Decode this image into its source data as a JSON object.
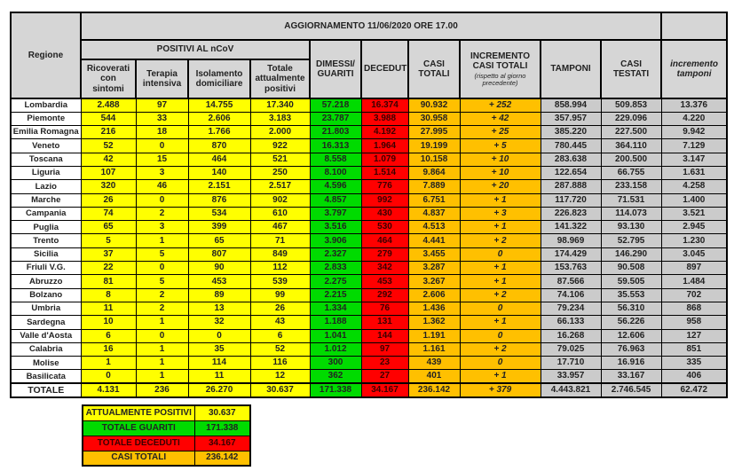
{
  "title": "AGGIORNAMENTO 11/06/2020 ORE 17.00",
  "columns": {
    "regione": "Regione",
    "positivi_group": "POSITIVI AL nCoV",
    "ricoverati": "Ricoverati con sintomi",
    "terapia": "Terapia intensiva",
    "isolamento": "Isolamento domiciliare",
    "totale_positivi": "Totale attualmente positivi",
    "dimessi": "DIMESSI/ GUARITI",
    "deceduti": "DECEDUTI",
    "casi_totali": "CASI TOTALI",
    "incremento_casi": "INCREMENTO CASI  TOTALI",
    "incremento_casi_note": "(rispetto al giorno precedente)",
    "tamponi": "TAMPONI",
    "casi_testati": "CASI TESTATI",
    "incremento_tamponi": "incremento tamponi"
  },
  "rows": [
    {
      "region": "Lombardia",
      "values": [
        "2.488",
        "97",
        "14.755",
        "17.340",
        "57.218",
        "16.374",
        "90.932",
        "+ 252",
        "858.994",
        "509.853",
        "13.376"
      ]
    },
    {
      "region": "Piemonte",
      "values": [
        "544",
        "33",
        "2.606",
        "3.183",
        "23.787",
        "3.988",
        "30.958",
        "+ 42",
        "357.957",
        "229.096",
        "4.220"
      ]
    },
    {
      "region": "Emilia Romagna",
      "values": [
        "216",
        "18",
        "1.766",
        "2.000",
        "21.803",
        "4.192",
        "27.995",
        "+ 25",
        "385.220",
        "227.500",
        "9.942"
      ]
    },
    {
      "region": "Veneto",
      "values": [
        "52",
        "0",
        "870",
        "922",
        "16.313",
        "1.964",
        "19.199",
        "+ 5",
        "780.445",
        "364.110",
        "7.129"
      ]
    },
    {
      "region": "Toscana",
      "values": [
        "42",
        "15",
        "464",
        "521",
        "8.558",
        "1.079",
        "10.158",
        "+ 10",
        "283.638",
        "200.500",
        "3.147"
      ]
    },
    {
      "region": "Liguria",
      "values": [
        "107",
        "3",
        "140",
        "250",
        "8.100",
        "1.514",
        "9.864",
        "+ 10",
        "122.654",
        "66.755",
        "1.631"
      ]
    },
    {
      "region": "Lazio",
      "values": [
        "320",
        "46",
        "2.151",
        "2.517",
        "4.596",
        "776",
        "7.889",
        "+ 20",
        "287.888",
        "233.158",
        "4.258"
      ]
    },
    {
      "region": "Marche",
      "values": [
        "26",
        "0",
        "876",
        "902",
        "4.857",
        "992",
        "6.751",
        "+ 1",
        "117.720",
        "71.531",
        "1.400"
      ]
    },
    {
      "region": "Campania",
      "values": [
        "74",
        "2",
        "534",
        "610",
        "3.797",
        "430",
        "4.837",
        "+ 3",
        "226.823",
        "114.073",
        "3.521"
      ]
    },
    {
      "region": "Puglia",
      "values": [
        "65",
        "3",
        "399",
        "467",
        "3.516",
        "530",
        "4.513",
        "+ 1",
        "141.322",
        "93.130",
        "2.945"
      ]
    },
    {
      "region": "Trento",
      "values": [
        "5",
        "1",
        "65",
        "71",
        "3.906",
        "464",
        "4.441",
        "+ 2",
        "98.969",
        "52.795",
        "1.230"
      ]
    },
    {
      "region": "Sicilia",
      "values": [
        "37",
        "5",
        "807",
        "849",
        "2.327",
        "279",
        "3.455",
        "0",
        "174.429",
        "146.290",
        "3.045"
      ]
    },
    {
      "region": "Friuli V.G.",
      "values": [
        "22",
        "0",
        "90",
        "112",
        "2.833",
        "342",
        "3.287",
        "+ 1",
        "153.763",
        "90.508",
        "897"
      ]
    },
    {
      "region": "Abruzzo",
      "values": [
        "81",
        "5",
        "453",
        "539",
        "2.275",
        "453",
        "3.267",
        "+ 1",
        "87.566",
        "59.505",
        "1.484"
      ]
    },
    {
      "region": "Bolzano",
      "values": [
        "8",
        "2",
        "89",
        "99",
        "2.215",
        "292",
        "2.606",
        "+ 2",
        "74.106",
        "35.553",
        "702"
      ]
    },
    {
      "region": "Umbria",
      "values": [
        "11",
        "2",
        "13",
        "26",
        "1.334",
        "76",
        "1.436",
        "0",
        "79.234",
        "56.310",
        "868"
      ]
    },
    {
      "region": "Sardegna",
      "values": [
        "10",
        "1",
        "32",
        "43",
        "1.188",
        "131",
        "1.362",
        "+ 1",
        "66.133",
        "56.226",
        "958"
      ]
    },
    {
      "region": "Valle d'Aosta",
      "values": [
        "6",
        "0",
        "0",
        "6",
        "1.041",
        "144",
        "1.191",
        "0",
        "16.268",
        "12.606",
        "127"
      ]
    },
    {
      "region": "Calabria",
      "values": [
        "16",
        "1",
        "35",
        "52",
        "1.012",
        "97",
        "1.161",
        "+ 2",
        "79.025",
        "76.963",
        "851"
      ]
    },
    {
      "region": "Molise",
      "values": [
        "1",
        "1",
        "114",
        "116",
        "300",
        "23",
        "439",
        "0",
        "17.710",
        "16.916",
        "335"
      ]
    },
    {
      "region": "Basilicata",
      "values": [
        "0",
        "1",
        "11",
        "12",
        "362",
        "27",
        "401",
        "+ 1",
        "33.957",
        "33.167",
        "406"
      ]
    },
    {
      "region": "TOTALE",
      "values": [
        "4.131",
        "236",
        "26.270",
        "30.637",
        "171.338",
        "34.167",
        "236.142",
        "+ 379",
        "4.443.821",
        "2.746.545",
        "62.472"
      ],
      "is_total": true
    }
  ],
  "summary": [
    {
      "label": "ATTUALMENTE POSITIVI",
      "value": "30.637",
      "color": "#ffff00",
      "text_color": "#222222"
    },
    {
      "label": "TOTALE GUARITI",
      "value": "171.338",
      "color": "#00db00",
      "text_color": "#222222"
    },
    {
      "label": "TOTALE DECEDUTI",
      "value": "34.167",
      "color": "#ff0000",
      "text_color": "#3a0000"
    },
    {
      "label": "CASI TOTALI",
      "value": "236.142",
      "color": "#ffc000",
      "text_color": "#222222"
    }
  ],
  "colors": {
    "positivi_bg": "#ffff00",
    "guariti_bg": "#00db00",
    "deceduti_bg": "#ff0000",
    "casi_totali_bg": "#ffc000",
    "tamponi_bg": "#cbcbcb",
    "header_bg": "#d6d6d6",
    "header_dark_bg": "#bfbfbf"
  }
}
